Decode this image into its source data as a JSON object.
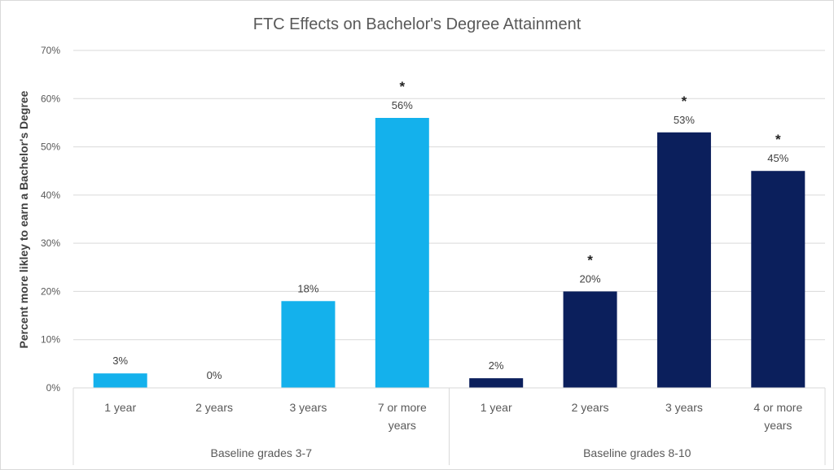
{
  "chart_data": {
    "type": "bar",
    "title": "FTC Effects on Bachelor's Degree Attainment",
    "xlabel": "",
    "ylabel": "Percent more likley to earn a Bachelor's Degree",
    "ylim": [
      0,
      70
    ],
    "yticks": [
      "0%",
      "10%",
      "20%",
      "30%",
      "40%",
      "50%",
      "60%",
      "70%"
    ],
    "grid": true,
    "legend": "none",
    "groups": [
      {
        "label": "Baseline grades 3-7",
        "color": "#14B1EC",
        "categories": [
          [
            "1 year"
          ],
          [
            "2 years"
          ],
          [
            "3 years"
          ],
          [
            "7 or more",
            "years"
          ]
        ],
        "values": [
          3,
          0,
          18,
          56
        ],
        "data_labels": [
          "3%",
          "0%",
          "18%",
          "56%"
        ],
        "significant": [
          false,
          false,
          false,
          true
        ]
      },
      {
        "label": "Baseline grades 8-10",
        "color": "#0B1F5C",
        "categories": [
          [
            "1 year"
          ],
          [
            "2 years"
          ],
          [
            "3 years"
          ],
          [
            "4 or more",
            "years"
          ]
        ],
        "values": [
          2,
          20,
          53,
          45
        ],
        "data_labels": [
          "2%",
          "20%",
          "53%",
          "45%"
        ],
        "significant": [
          false,
          true,
          true,
          true
        ]
      }
    ],
    "significance_marker": "*"
  }
}
